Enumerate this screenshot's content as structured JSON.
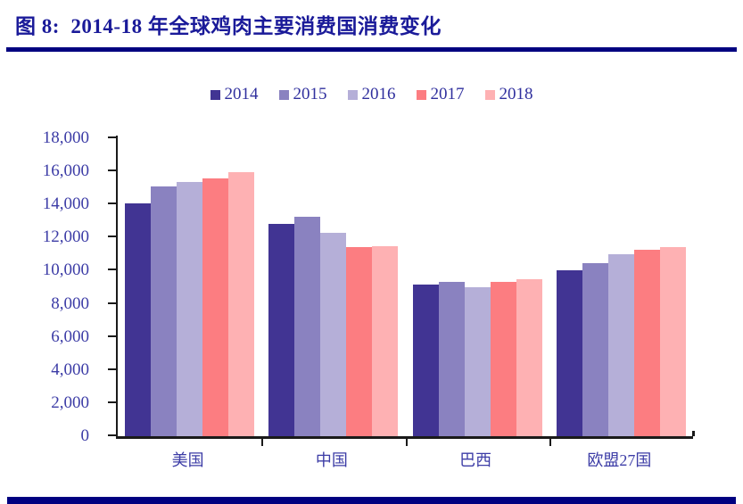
{
  "page": {
    "title": "图 8:  2014-18 年全球鸡肉主要消费国消费变化"
  },
  "colors": {
    "accent_navy": "#000080",
    "title_text": "#1a1a99",
    "axis_text": "#3c3ca6",
    "axis_line": "#1a1a1a"
  },
  "chart_data": {
    "type": "bar",
    "title": "2014-18 年全球鸡肉主要消费国消费变化",
    "xlabel": "",
    "ylabel": "",
    "categories": [
      "美国",
      "中国",
      "巴西",
      "欧盟27国"
    ],
    "series": [
      {
        "name": "2014",
        "color": "#413493",
        "values": [
          14050,
          12800,
          9150,
          10050
        ]
      },
      {
        "name": "2015",
        "color": "#8A82C0",
        "values": [
          15100,
          13250,
          9300,
          10450
        ]
      },
      {
        "name": "2016",
        "color": "#B5AFD8",
        "values": [
          15350,
          12300,
          9000,
          11000
        ]
      },
      {
        "name": "2017",
        "color": "#FC7D81",
        "values": [
          15600,
          11450,
          9300,
          11250
        ]
      },
      {
        "name": "2018",
        "color": "#FEB1B3",
        "values": [
          15950,
          11500,
          9500,
          11400
        ]
      }
    ],
    "ylim": [
      0,
      18000
    ],
    "yticks": [
      0,
      2000,
      4000,
      6000,
      8000,
      10000,
      12000,
      14000,
      16000,
      18000
    ],
    "ytick_labels": [
      "0",
      "2,000",
      "4,000",
      "6,000",
      "8,000",
      "10,000",
      "12,000",
      "14,000",
      "16,000",
      "18,000"
    ],
    "legend_position": "top-center",
    "grid": false
  }
}
